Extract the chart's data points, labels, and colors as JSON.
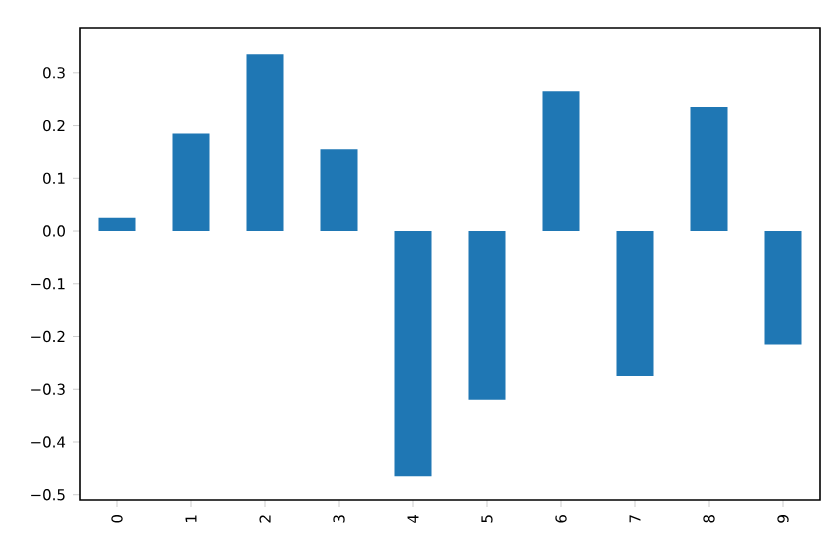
{
  "chart_data": {
    "type": "bar",
    "categories": [
      "0",
      "1",
      "2",
      "3",
      "4",
      "5",
      "6",
      "7",
      "8",
      "9"
    ],
    "values": [
      0.025,
      0.185,
      0.335,
      0.155,
      -0.465,
      -0.32,
      0.265,
      -0.275,
      0.235,
      -0.215
    ],
    "color": "#1f77b4",
    "ylim": [
      -0.51,
      0.385
    ],
    "yticks": [
      {
        "value": -0.5,
        "label": "−0.5"
      },
      {
        "value": -0.4,
        "label": "−0.4"
      },
      {
        "value": -0.3,
        "label": "−0.3"
      },
      {
        "value": -0.2,
        "label": "−0.2"
      },
      {
        "value": -0.1,
        "label": "−0.1"
      },
      {
        "value": 0.0,
        "label": "0.0"
      },
      {
        "value": 0.1,
        "label": "0.1"
      },
      {
        "value": 0.2,
        "label": "0.2"
      },
      {
        "value": 0.3,
        "label": "0.3"
      }
    ],
    "grid": false
  }
}
